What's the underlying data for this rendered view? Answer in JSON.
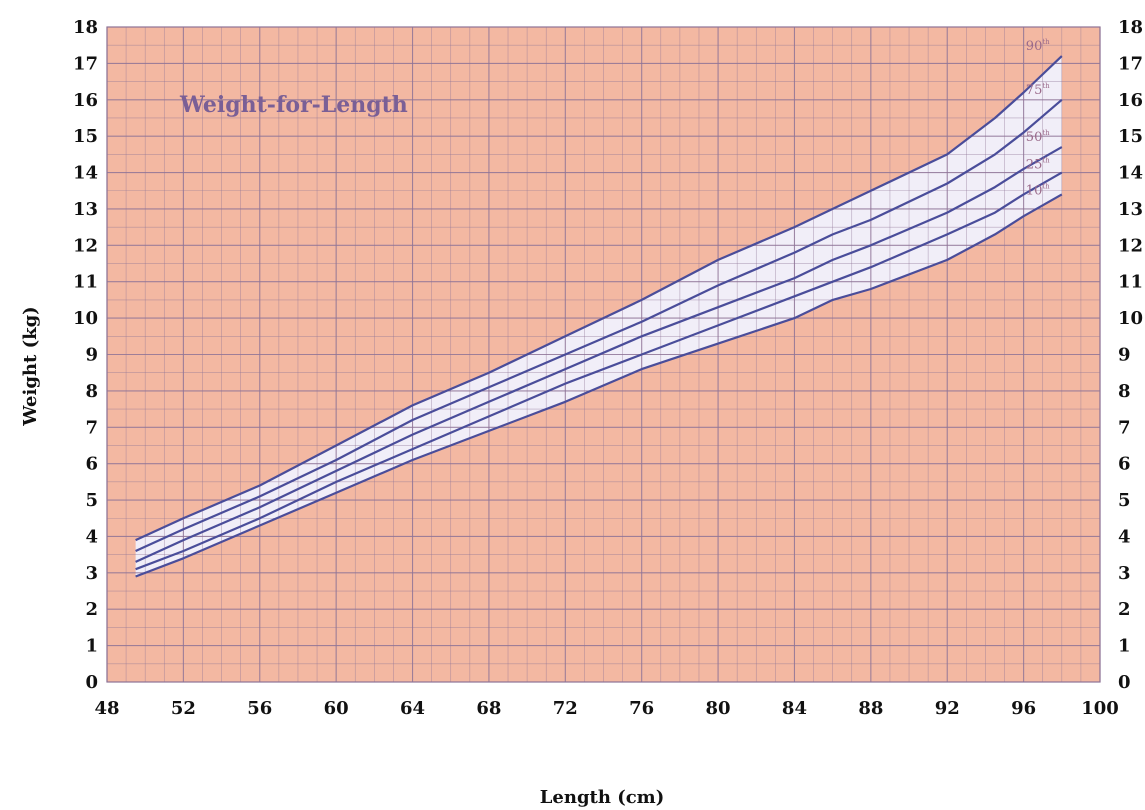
{
  "chart_data": {
    "type": "line",
    "title": "Weight-for-Length",
    "xlabel": "Length (cm)",
    "ylabel": "Weight (kg)",
    "xlim": [
      48,
      100
    ],
    "ylim": [
      0,
      18
    ],
    "x_ticks": [
      48,
      52,
      56,
      60,
      64,
      68,
      72,
      76,
      80,
      84,
      88,
      92,
      96,
      100
    ],
    "y_ticks": [
      0,
      1,
      2,
      3,
      4,
      5,
      6,
      7,
      8,
      9,
      10,
      11,
      12,
      13,
      14,
      15,
      16,
      17,
      18
    ],
    "y_ticks_right": [
      0,
      1,
      2,
      3,
      4,
      5,
      6,
      7,
      8,
      9,
      10,
      11,
      12,
      13,
      14,
      15,
      16,
      17,
      18
    ],
    "grid": true,
    "x": [
      49.5,
      52,
      56,
      60,
      64,
      68,
      72,
      76,
      80,
      84,
      86,
      88,
      92,
      94.5,
      96,
      98
    ],
    "series": [
      {
        "name": "90th",
        "label_main": "90",
        "label_sup": "th",
        "values": [
          3.9,
          4.5,
          5.4,
          6.5,
          7.6,
          8.5,
          9.5,
          10.5,
          11.6,
          12.5,
          13.0,
          13.5,
          14.5,
          15.5,
          16.2,
          17.2
        ]
      },
      {
        "name": "75th",
        "label_main": "75",
        "label_sup": "th",
        "values": [
          3.6,
          4.2,
          5.1,
          6.1,
          7.2,
          8.1,
          9.0,
          9.9,
          10.9,
          11.8,
          12.3,
          12.7,
          13.7,
          14.5,
          15.1,
          16.0
        ]
      },
      {
        "name": "50th",
        "label_main": "50",
        "label_sup": "th",
        "values": [
          3.3,
          3.9,
          4.8,
          5.8,
          6.8,
          7.7,
          8.6,
          9.5,
          10.3,
          11.1,
          11.6,
          12.0,
          12.9,
          13.6,
          14.1,
          14.7
        ]
      },
      {
        "name": "25th",
        "label_main": "25",
        "label_sup": "th",
        "values": [
          3.1,
          3.6,
          4.5,
          5.5,
          6.4,
          7.3,
          8.2,
          9.0,
          9.8,
          10.6,
          11.0,
          11.4,
          12.3,
          12.9,
          13.4,
          14.0
        ]
      },
      {
        "name": "10th",
        "label_main": "10",
        "label_sup": "th",
        "values": [
          2.9,
          3.4,
          4.3,
          5.2,
          6.1,
          6.9,
          7.7,
          8.6,
          9.3,
          10.0,
          10.5,
          10.8,
          11.6,
          12.3,
          12.8,
          13.4
        ]
      }
    ],
    "colors": {
      "background": "#f3b8a2",
      "band_fill": "#f1eef8",
      "grid_line": "#8e7396",
      "curve": "#4a4d9a",
      "title_color": "#7a5f96",
      "label_color": "#9a6a8a"
    }
  }
}
